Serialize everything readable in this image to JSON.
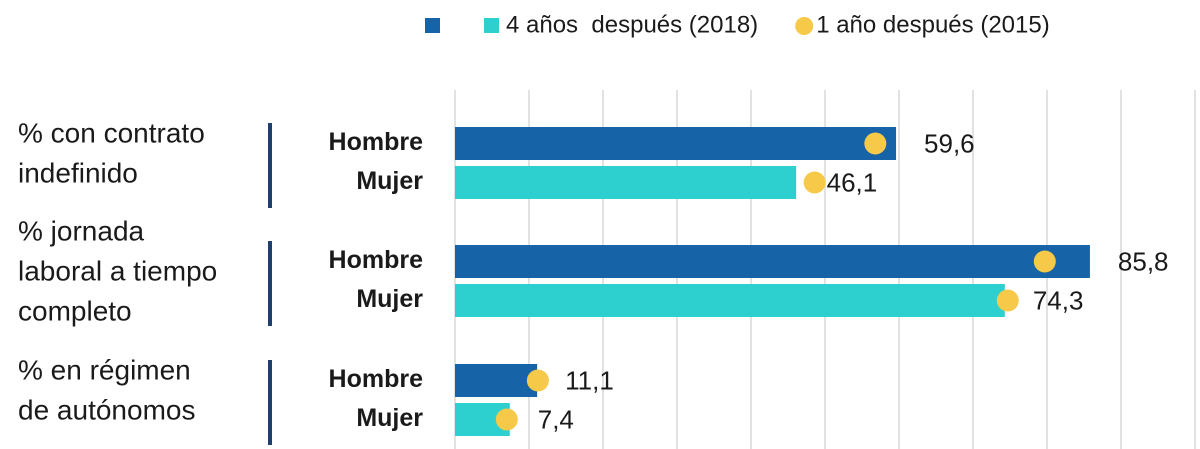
{
  "chart_data": {
    "type": "grouped-hbar-dot",
    "categories": [
      [
        "% con contrato",
        "indefinido"
      ],
      [
        "% jornada",
        "laboral a tiempo",
        "completo"
      ],
      [
        "% en régimen",
        "de autónomos"
      ]
    ],
    "subgroups": [
      "Hombre",
      "Mujer"
    ],
    "series": [
      {
        "name": "4 años  después (2018)",
        "colors": [
          "#1763a7",
          "#2ecfcf"
        ],
        "marker": "bar",
        "values": [
          [
            59.6,
            46.1
          ],
          [
            85.8,
            74.3
          ],
          [
            11.1,
            7.4
          ]
        ],
        "value_labels": [
          [
            "59,6",
            "46,1"
          ],
          [
            "85,8",
            "74,3"
          ],
          [
            "11,1",
            "7,4"
          ]
        ]
      },
      {
        "name": "1 año después (2015)",
        "color": "#f7c948",
        "marker": "dot",
        "values": [
          [
            56.8,
            48.6
          ],
          [
            79.7,
            74.7
          ],
          [
            11.2,
            7.0
          ]
        ]
      }
    ],
    "xlim": [
      0,
      100
    ],
    "xticks": [
      0,
      10,
      20,
      30,
      40,
      50,
      60,
      70,
      80,
      90,
      100
    ],
    "grid": true,
    "show_tick_labels": false,
    "legend": "top"
  }
}
